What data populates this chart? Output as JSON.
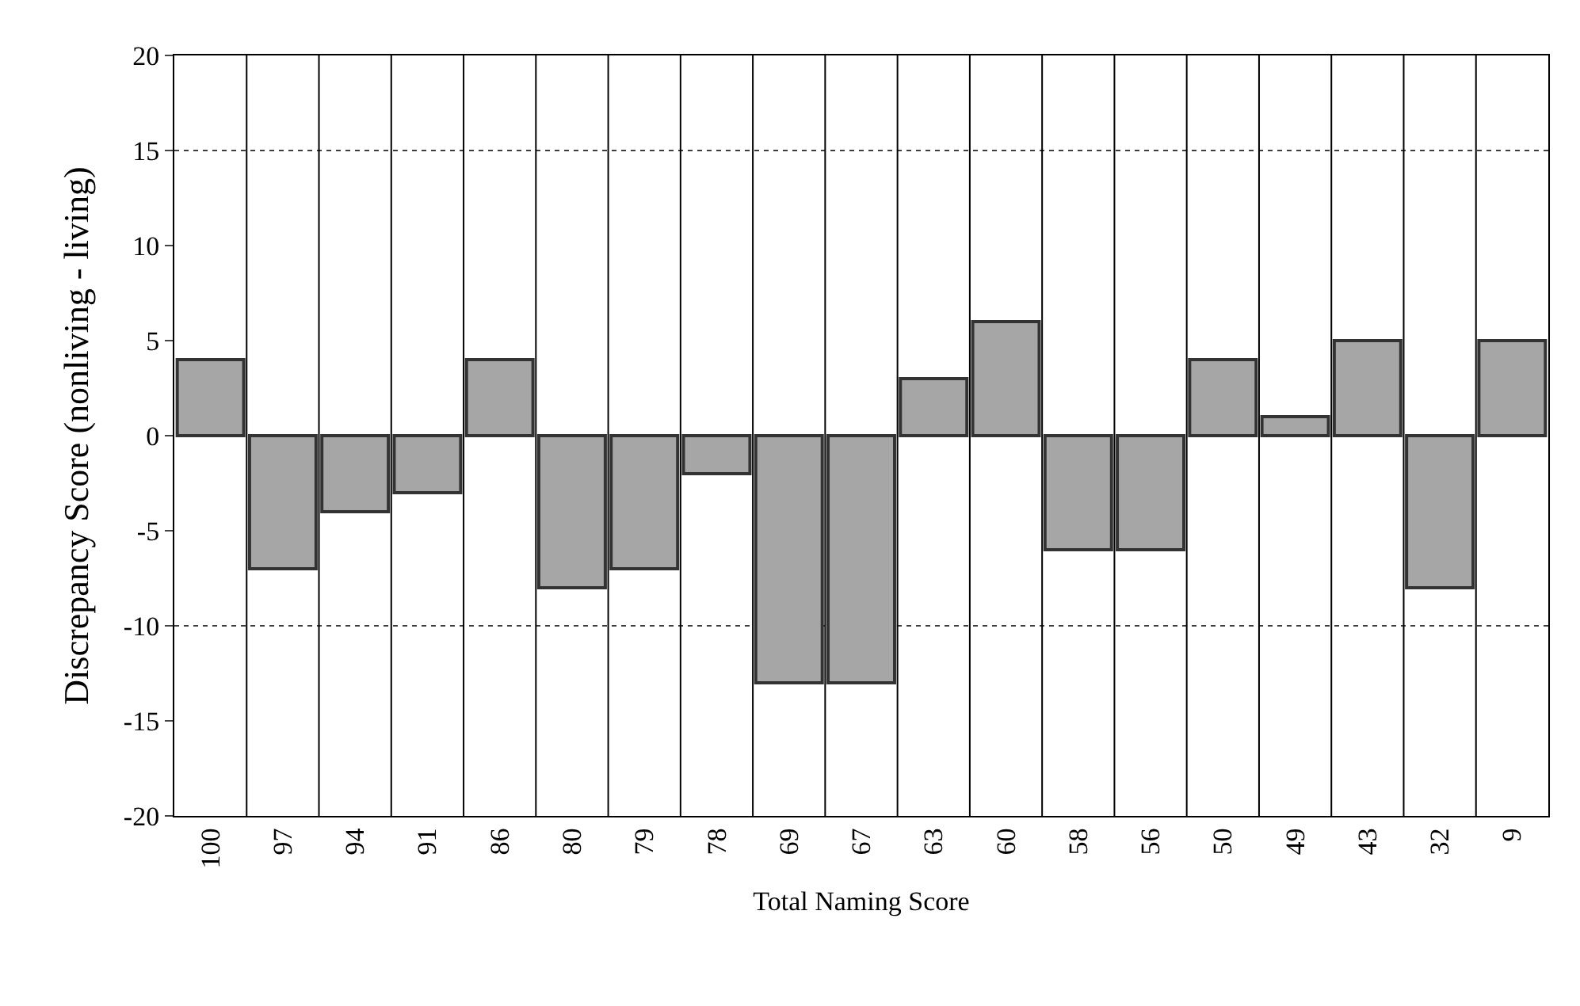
{
  "chart_data": {
    "type": "bar",
    "xlabel": "Total Naming Score",
    "ylabel": "Discrepancy Score (nonliving - living)",
    "categories": [
      "100",
      "97",
      "94",
      "91",
      "86",
      "80",
      "79",
      "78",
      "69",
      "67",
      "63",
      "60",
      "58",
      "56",
      "50",
      "49",
      "43",
      "32",
      "9"
    ],
    "values": [
      4,
      -7,
      -4,
      -3,
      4,
      -8,
      -7,
      -2,
      -13,
      -13,
      3,
      6,
      -6,
      -6,
      4,
      1,
      5,
      -8,
      5
    ],
    "color": "#a6a6a6",
    "ylim": [
      -20,
      20
    ],
    "yticks": [
      -20,
      -15,
      -10,
      -5,
      0,
      5,
      10,
      15,
      20
    ],
    "grid": "x",
    "legend": false,
    "ref_lines": [
      {
        "axis": "y",
        "value": 15,
        "line_style": "dotted",
        "color": "#000000"
      },
      {
        "axis": "y",
        "value": -10,
        "line_style": "dotted",
        "color": "#000000"
      }
    ]
  }
}
